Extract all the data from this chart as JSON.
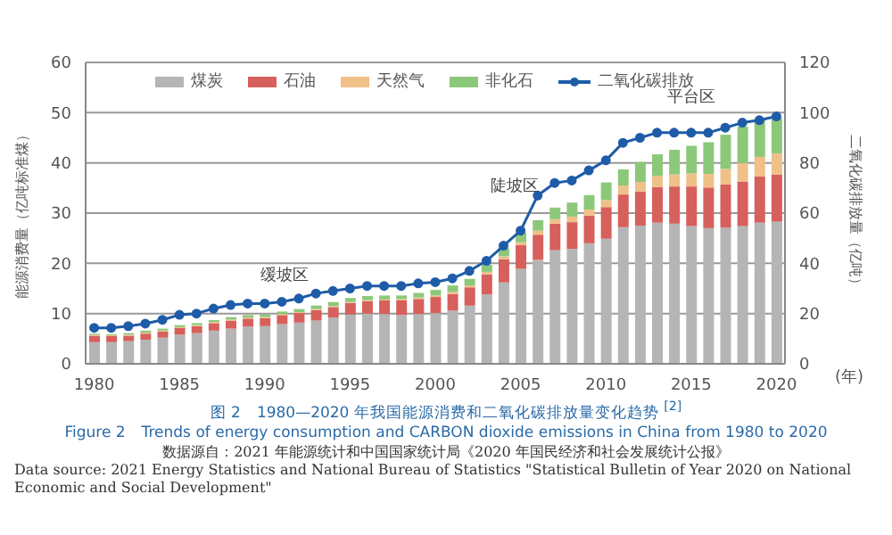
{
  "chart_data": {
    "type": "bar",
    "stacked": true,
    "title": "图 2　1980—2020 年我国能源消费和二氧化碳排放量变化趋势 $^{[2]}$",
    "subtitle": "Figure 2　Trends of energy consumption and CARBON dioxide emissions in China from 1980 to 2020",
    "xlabel": "(年)",
    "ylabel": "能源消费量（亿吨标准煤）",
    "y2label": "二氧化碳排放量（亿吨）",
    "categories": [
      "1980",
      null,
      null,
      null,
      null,
      "1985",
      null,
      null,
      null,
      null,
      "1990",
      null,
      null,
      null,
      null,
      "1995",
      null,
      null,
      null,
      null,
      "2000",
      null,
      null,
      null,
      null,
      "2005",
      null,
      null,
      null,
      null,
      "2010",
      null,
      null,
      null,
      null,
      "2015",
      null,
      null,
      null,
      null,
      "2020"
    ],
    "series": [
      {
        "name": "煤炭",
        "color": "#b5b5b5",
        "values": [
          4.3,
          4.3,
          4.5,
          4.8,
          5.2,
          5.8,
          6.1,
          6.6,
          7.0,
          7.4,
          7.5,
          7.9,
          8.2,
          8.6,
          9.2,
          9.8,
          10.0,
          9.9,
          9.7,
          9.9,
          10.1,
          10.6,
          11.6,
          13.8,
          16.2,
          18.9,
          20.7,
          22.6,
          22.9,
          24.0,
          24.9,
          27.2,
          27.5,
          28.1,
          27.9,
          27.4,
          27.0,
          27.1,
          27.4,
          28.1,
          28.3
        ]
      },
      {
        "name": "石油",
        "color": "#d6605c",
        "values": [
          1.3,
          1.2,
          1.1,
          1.2,
          1.2,
          1.3,
          1.4,
          1.5,
          1.6,
          1.6,
          1.6,
          1.8,
          1.9,
          2.1,
          2.1,
          2.3,
          2.5,
          2.7,
          2.9,
          3.0,
          3.2,
          3.3,
          3.6,
          4.0,
          4.6,
          4.7,
          5.0,
          5.3,
          5.3,
          5.5,
          6.3,
          6.5,
          6.8,
          7.1,
          7.4,
          7.9,
          8.1,
          8.6,
          8.9,
          9.2,
          9.4
        ]
      },
      {
        "name": "天然气",
        "color": "#f0c089",
        "values": [
          0.2,
          0.2,
          0.2,
          0.2,
          0.2,
          0.2,
          0.2,
          0.2,
          0.2,
          0.2,
          0.2,
          0.2,
          0.2,
          0.2,
          0.2,
          0.2,
          0.2,
          0.2,
          0.3,
          0.3,
          0.3,
          0.4,
          0.4,
          0.5,
          0.6,
          0.6,
          0.8,
          0.9,
          1.1,
          1.2,
          1.4,
          1.8,
          1.9,
          2.2,
          2.4,
          2.6,
          2.7,
          3.1,
          3.7,
          3.9,
          4.2
        ]
      },
      {
        "name": "非化石",
        "color": "#8cc87a",
        "values": [
          0.2,
          0.2,
          0.3,
          0.4,
          0.4,
          0.4,
          0.4,
          0.4,
          0.5,
          0.5,
          0.5,
          0.5,
          0.6,
          0.7,
          0.8,
          0.8,
          0.8,
          0.8,
          0.7,
          0.9,
          1.1,
          1.3,
          1.3,
          1.4,
          1.6,
          1.9,
          2.1,
          2.3,
          2.8,
          2.9,
          3.5,
          3.2,
          4.0,
          4.3,
          4.9,
          5.5,
          6.3,
          6.8,
          7.2,
          7.5,
          7.0
        ]
      },
      {
        "name": "二氧化碳排放",
        "type": "line",
        "axis": "y2",
        "color": "#1f5ca8",
        "values": [
          14.3,
          14.3,
          15,
          16,
          17.5,
          19.5,
          20,
          22,
          23.4,
          24,
          24,
          24.7,
          26,
          28,
          29,
          30,
          31,
          31,
          31,
          32,
          32.5,
          34,
          37,
          41,
          47,
          53,
          67,
          72,
          73,
          77,
          81,
          88,
          90,
          92,
          92,
          92,
          92,
          94,
          96,
          97,
          98.5
        ]
      }
    ],
    "ylim": [
      0,
      60
    ],
    "yticks": [
      0,
      10,
      20,
      30,
      40,
      50,
      60
    ],
    "y2lim": [
      0,
      120
    ],
    "y2ticks": [
      0,
      20,
      40,
      60,
      80,
      100,
      120
    ],
    "grid": "y",
    "legend": "top",
    "marker": "circle",
    "annotations": [
      "缓坡区",
      "陡坡区",
      "平台区",
      "数据源自：2021 年能源统计和中国国家统计局《2020 年国民经济和社会发展统计公报》",
      "Data source: 2021 Energy Statistics and National Bureau of Statistics \"Statistical Bulletin of Year 2020 on National Economic and Social Development\""
    ]
  }
}
